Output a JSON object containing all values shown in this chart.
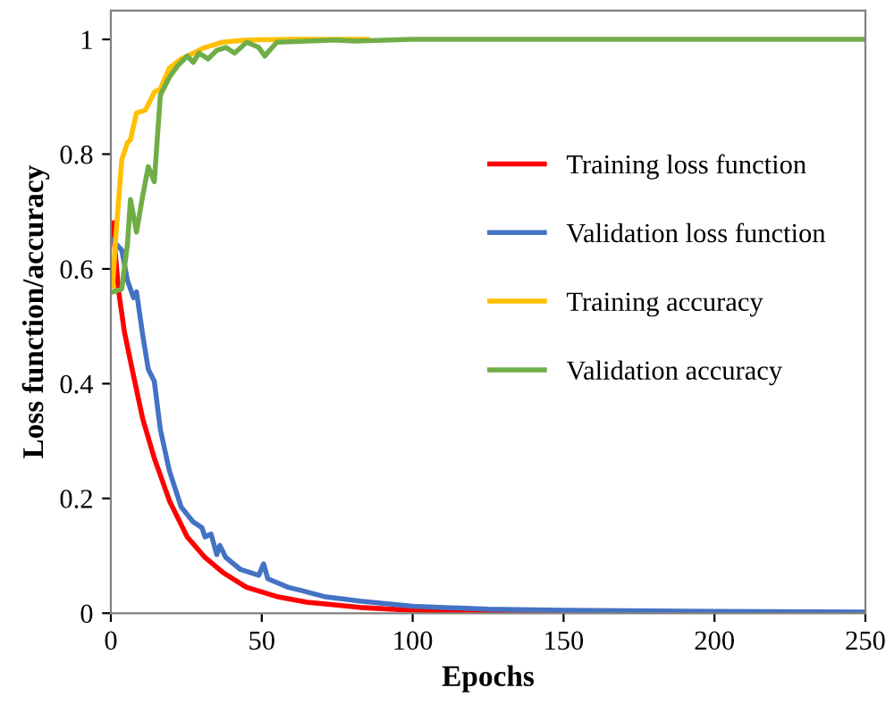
{
  "chart_data": {
    "type": "line",
    "xlabel": "Epochs",
    "ylabel": "Loss function/accuracy",
    "xlim": [
      0,
      250
    ],
    "xticks": [
      0,
      50,
      100,
      150,
      200,
      250
    ],
    "ylim": [
      0,
      1.05
    ],
    "yticks": [
      0,
      0.2,
      0.4,
      0.6,
      0.8,
      1
    ],
    "grid": false,
    "legend": "right",
    "marker": "none",
    "line_style": "solid",
    "series": [
      {
        "name": "Training loss function",
        "color": "#ff0000",
        "x": [
          0.6,
          2.6,
          4.5,
          7.5,
          10.5,
          14.4,
          19.4,
          25.3,
          31.2,
          37.1,
          45,
          55,
          65,
          82.5,
          100,
          125,
          150
        ],
        "values": [
          0.68,
          0.56,
          0.49,
          0.414,
          0.34,
          0.27,
          0.196,
          0.133,
          0.097,
          0.071,
          0.045,
          0.029,
          0.019,
          0.01,
          0.005,
          0.003,
          0.002
        ]
      },
      {
        "name": "Validation loss function",
        "color": "#4472c4",
        "x": [
          0.6,
          3.6,
          5.5,
          7.5,
          8.5,
          10.5,
          12.4,
          14.4,
          16.4,
          19.4,
          23.3,
          27.3,
          30.2,
          31.2,
          33.2,
          35.1,
          36.1,
          38.1,
          43,
          49,
          50.6,
          52,
          58.8,
          62.8,
          70.7,
          82.5,
          100,
          125,
          150,
          200,
          250
        ],
        "values": [
          0.65,
          0.633,
          0.58,
          0.55,
          0.56,
          0.487,
          0.425,
          0.404,
          0.32,
          0.248,
          0.185,
          0.159,
          0.149,
          0.133,
          0.138,
          0.102,
          0.118,
          0.097,
          0.076,
          0.066,
          0.086,
          0.06,
          0.045,
          0.04,
          0.029,
          0.021,
          0.012,
          0.007,
          0.005,
          0.003,
          0.002
        ]
      },
      {
        "name": "Training accuracy",
        "color": "#ffc000",
        "x": [
          0.6,
          1.6,
          3.6,
          5.5,
          6.5,
          8.5,
          11.5,
          14.4,
          16.4,
          19.4,
          23.3,
          27.3,
          31.2,
          37.1,
          45,
          60,
          85
        ],
        "values": [
          0.57,
          0.653,
          0.79,
          0.82,
          0.825,
          0.872,
          0.877,
          0.908,
          0.914,
          0.95,
          0.966,
          0.976,
          0.986,
          0.995,
          0.999,
          1,
          1
        ]
      },
      {
        "name": "Validation accuracy",
        "color": "#70ad47",
        "x": [
          0.6,
          3.6,
          5.5,
          6.5,
          8.5,
          10.5,
          12.4,
          14.4,
          16.4,
          19.4,
          22.3,
          25.3,
          27.3,
          29.2,
          32.2,
          35.1,
          38.1,
          41,
          45,
          49,
          51,
          55,
          65,
          74.6,
          80.5,
          100,
          250
        ],
        "values": [
          0.56,
          0.565,
          0.643,
          0.721,
          0.664,
          0.726,
          0.778,
          0.752,
          0.903,
          0.934,
          0.955,
          0.971,
          0.96,
          0.976,
          0.966,
          0.981,
          0.986,
          0.976,
          0.995,
          0.986,
          0.971,
          0.995,
          0.997,
          0.999,
          0.997,
          1,
          1
        ]
      }
    ]
  }
}
